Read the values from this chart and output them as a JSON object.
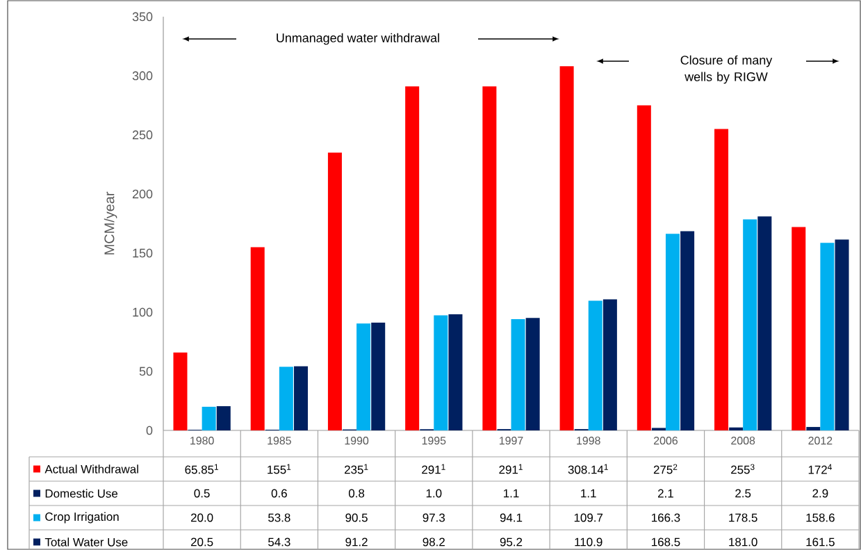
{
  "chart_data": {
    "type": "bar",
    "ylabel": "MCM/year",
    "categories": [
      "1980",
      "1985",
      "1990",
      "1995",
      "1997",
      "1998",
      "2006",
      "2008",
      "2012"
    ],
    "series": [
      {
        "name": "Actual Withdrawal",
        "color": "#ff0000",
        "values": [
          65.85,
          155,
          235,
          291,
          291,
          308.14,
          275,
          255,
          172
        ],
        "value_labels": [
          "65.85$^{1}$",
          "155$^{1}$",
          "235$^{1}$",
          "291$^{1}$",
          "291$^{1}$",
          "308.14$^{1}$",
          "275$^{2}$",
          "255$^{3}$",
          "172$^{4}$"
        ]
      },
      {
        "name": "Domestic Use",
        "color": "#002060",
        "values": [
          0.5,
          0.6,
          0.8,
          1.0,
          1.1,
          1.1,
          2.1,
          2.5,
          2.9
        ],
        "value_labels": [
          "0.5",
          "0.6",
          "0.8",
          "1.0",
          "1.1",
          "1.1",
          "2.1",
          "2.5",
          "2.9"
        ]
      },
      {
        "name": "Crop Irrigation",
        "color": "#00b0f0",
        "values": [
          20.0,
          53.8,
          90.5,
          97.3,
          94.1,
          109.7,
          166.3,
          178.5,
          158.6
        ],
        "value_labels": [
          "20.0",
          "53.8",
          "90.5",
          "97.3",
          "94.1",
          "109.7",
          "166.3",
          "178.5",
          "158.6"
        ]
      },
      {
        "name": "Total Water Use",
        "color": "#002060",
        "values": [
          20.5,
          54.3,
          91.2,
          98.2,
          95.2,
          110.9,
          168.5,
          181.0,
          161.5
        ],
        "value_labels": [
          "20.5",
          "54.3",
          "91.2",
          "98.2",
          "95.2",
          "110.9",
          "168.5",
          "181.0",
          "161.5"
        ]
      }
    ],
    "ylim": [
      0,
      350
    ],
    "yticks": [
      0,
      50,
      100,
      150,
      200,
      250,
      300,
      350
    ],
    "legend": "bottom",
    "annotations": [
      "Unmanaged water withdrawal",
      "Closure of many wells by RIGW"
    ]
  }
}
